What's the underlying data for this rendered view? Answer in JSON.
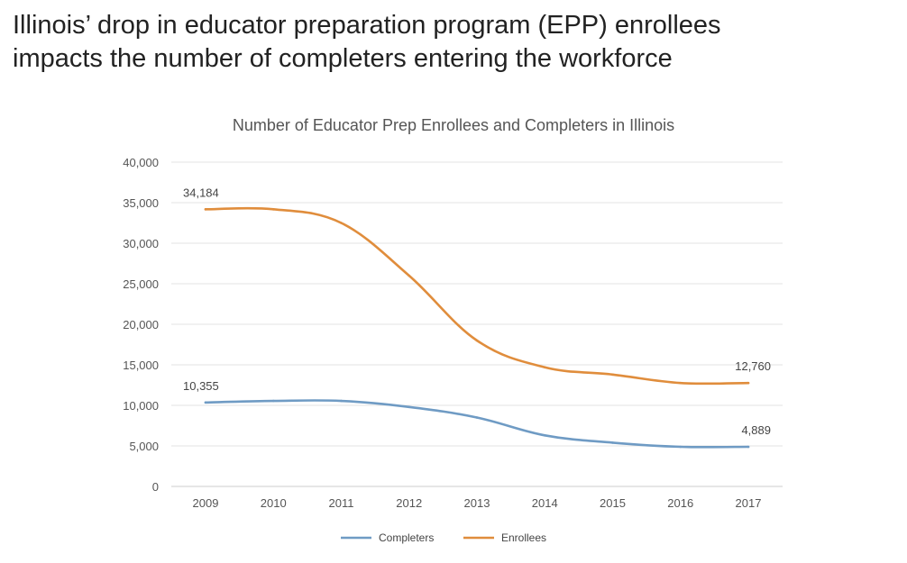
{
  "headline": {
    "line1": "Illinois’ drop in educator preparation program (EPP) enrollees",
    "line2": "impacts the number of completers entering the workforce"
  },
  "chart_data": {
    "type": "line",
    "title": "Number of Educator Prep Enrollees and Completers in Illinois",
    "xlabel": "",
    "ylabel": "",
    "categories": [
      "2009",
      "2010",
      "2011",
      "2012",
      "2013",
      "2014",
      "2015",
      "2016",
      "2017"
    ],
    "ylim": [
      0,
      40000
    ],
    "yticks": [
      0,
      5000,
      10000,
      15000,
      20000,
      25000,
      30000,
      35000,
      40000
    ],
    "ytick_labels": [
      "0",
      "5,000",
      "10,000",
      "15,000",
      "20,000",
      "25,000",
      "30,000",
      "35,000",
      "40,000"
    ],
    "grid": true,
    "legend_position": "bottom",
    "series": [
      {
        "name": "Completers",
        "color": "#6f9bc4",
        "values": [
          10355,
          10550,
          10550,
          9800,
          8500,
          6300,
          5400,
          4889,
          4889
        ],
        "labels": [
          {
            "index": 0,
            "text": "10,355"
          },
          {
            "index": 8,
            "text": "4,889"
          }
        ]
      },
      {
        "name": "Enrollees",
        "color": "#e08d3c",
        "values": [
          34184,
          34184,
          32500,
          26000,
          18000,
          14700,
          13800,
          12760,
          12760
        ],
        "labels": [
          {
            "index": 0,
            "text": "34,184"
          },
          {
            "index": 8,
            "text": "12,760"
          }
        ]
      }
    ]
  }
}
